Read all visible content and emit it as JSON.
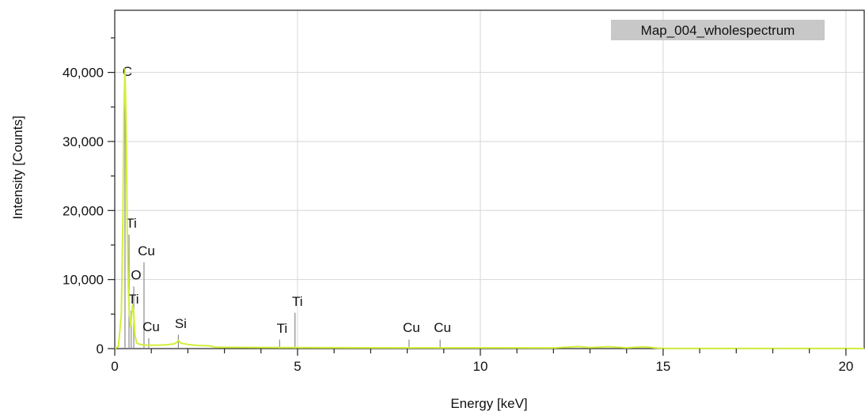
{
  "chart_data": {
    "type": "line",
    "title": "",
    "xlabel": "Energy [keV]",
    "ylabel": "Intensity [Counts]",
    "xlim": [
      0,
      20.5
    ],
    "ylim": [
      0,
      49000
    ],
    "x_ticks": [
      {
        "value": 0,
        "label": "0"
      },
      {
        "value": 5,
        "label": "5"
      },
      {
        "value": 10,
        "label": "10"
      },
      {
        "value": 15,
        "label": "15"
      },
      {
        "value": 20,
        "label": "20"
      }
    ],
    "y_ticks": [
      {
        "value": 0,
        "label": "0"
      },
      {
        "value": 10000,
        "label": "10,000"
      },
      {
        "value": 20000,
        "label": "20,000"
      },
      {
        "value": 30000,
        "label": "30,000"
      },
      {
        "value": 40000,
        "label": "40,000"
      }
    ],
    "grid": true,
    "legend_position": "top-right",
    "series": [
      {
        "name": "Map_004_wholespectrum",
        "color": "#d4ee3a",
        "x": [
          0,
          0.1,
          0.18,
          0.22,
          0.25,
          0.28,
          0.31,
          0.34,
          0.37,
          0.4,
          0.43,
          0.46,
          0.49,
          0.52,
          0.55,
          0.6,
          0.7,
          0.8,
          0.9,
          1.0,
          1.2,
          1.4,
          1.6,
          1.7,
          1.74,
          1.8,
          2.0,
          2.3,
          2.6,
          2.75,
          3.0,
          4.0,
          5.0,
          6.0,
          8.0,
          10.0,
          12.0,
          12.7,
          13.0,
          13.5,
          14.0,
          14.5,
          14.8,
          15.0,
          16.0,
          18.0,
          20.0,
          20.5
        ],
        "y": [
          0,
          300,
          5000,
          18000,
          34000,
          40500,
          33000,
          18000,
          9000,
          5000,
          3200,
          4500,
          6300,
          5200,
          2000,
          800,
          600,
          550,
          500,
          480,
          500,
          550,
          650,
          900,
          1200,
          800,
          600,
          450,
          400,
          200,
          180,
          160,
          140,
          130,
          120,
          110,
          100,
          300,
          150,
          280,
          120,
          250,
          80,
          50,
          40,
          30,
          20,
          10
        ]
      }
    ],
    "annotations": [
      {
        "label": "C",
        "x": 0.28,
        "top": 38500,
        "label_y": 39500
      },
      {
        "label": "Ti",
        "x": 0.39,
        "top": 16500,
        "label_y": 17500
      },
      {
        "label": "Cu",
        "x": 0.8,
        "top": 12500,
        "label_y": 13500
      },
      {
        "label": "O",
        "x": 0.52,
        "top": 9000,
        "label_y": 10000
      },
      {
        "label": "Ti",
        "x": 0.45,
        "top": 5500,
        "label_y": 6500
      },
      {
        "label": "Cu",
        "x": 0.93,
        "top": 1500,
        "label_y": 2500
      },
      {
        "label": "Si",
        "x": 1.74,
        "top": 2000,
        "label_y": 3000
      },
      {
        "label": "Ti",
        "x": 4.51,
        "top": 1300,
        "label_y": 2300
      },
      {
        "label": "Ti",
        "x": 4.93,
        "top": 5200,
        "label_y": 6200
      },
      {
        "label": "Cu",
        "x": 8.05,
        "top": 1300,
        "label_y": 2400
      },
      {
        "label": "Cu",
        "x": 8.9,
        "top": 1300,
        "label_y": 2400
      }
    ]
  }
}
